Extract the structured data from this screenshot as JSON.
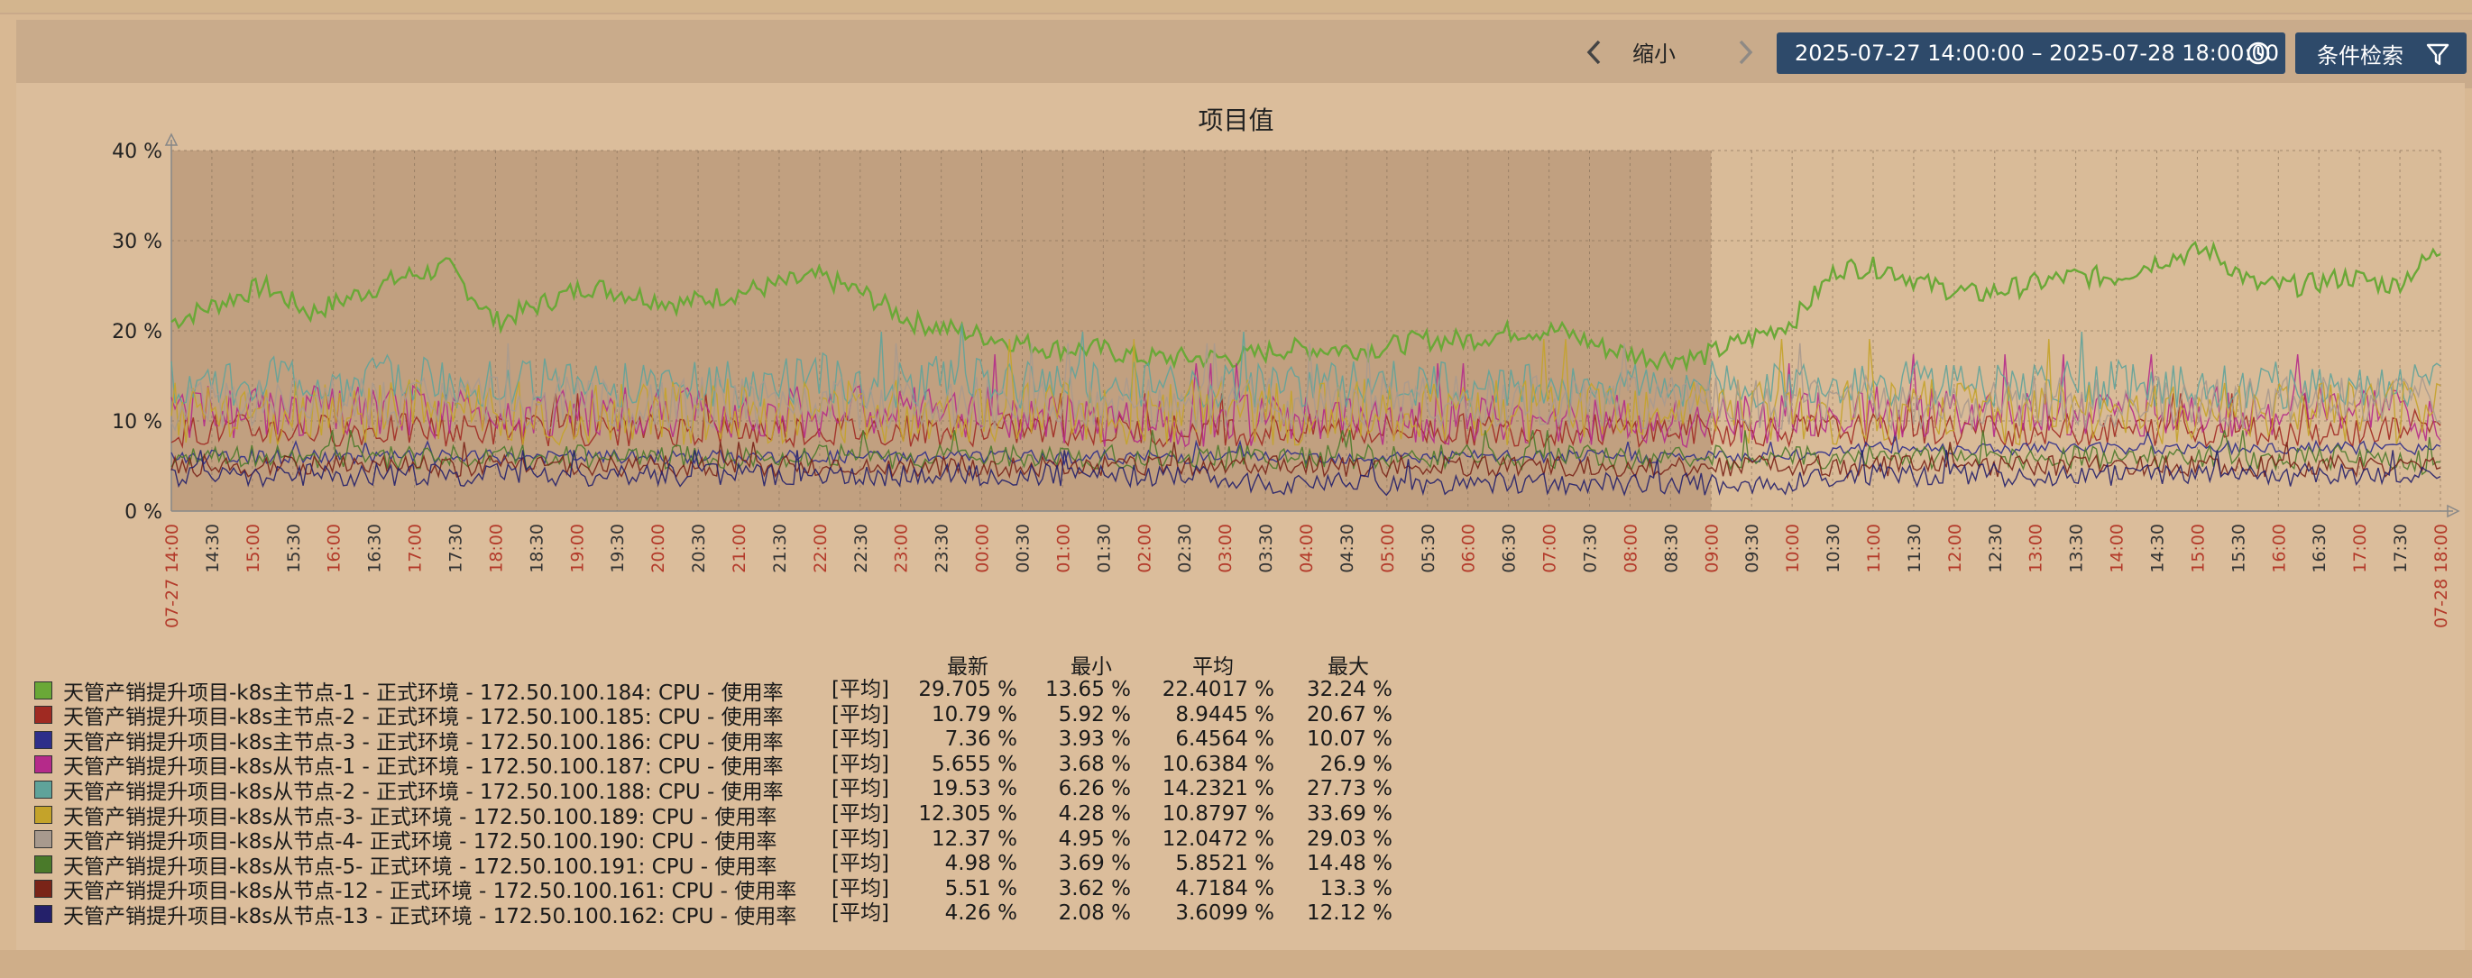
{
  "toolbar": {
    "zoom_out_label": "缩小",
    "time_range": "2025-07-27 14:00:00 – 2025-07-28 18:00:00",
    "filter_label": "条件检索"
  },
  "colors": {
    "accent_button": "#2e4a6a",
    "panel_bg": "#dbbd9b",
    "page_bg": "#d8b893",
    "shade": "#c1a080",
    "day_tick_red": "#b33a2a"
  },
  "chart_data": {
    "type": "line",
    "title": "项目值",
    "ylim": [
      0,
      40
    ],
    "y_ticks": [
      "0 %",
      "10 %",
      "20 %",
      "30 %",
      "40 %"
    ],
    "x_start": "07-27 14:00",
    "x_end": "07-28 18:00",
    "x_ticks": [
      "07-27 14:00",
      "14:30",
      "15:00",
      "15:30",
      "16:00",
      "16:30",
      "17:00",
      "17:30",
      "18:00",
      "18:30",
      "19:00",
      "19:30",
      "20:00",
      "20:30",
      "21:00",
      "21:30",
      "22:00",
      "22:30",
      "23:00",
      "23:30",
      "00:00",
      "00:30",
      "01:00",
      "01:30",
      "02:00",
      "02:30",
      "03:00",
      "03:30",
      "04:00",
      "04:30",
      "05:00",
      "05:30",
      "06:00",
      "06:30",
      "07:00",
      "07:30",
      "08:00",
      "08:30",
      "09:00",
      "09:30",
      "10:00",
      "10:30",
      "11:00",
      "11:30",
      "12:00",
      "12:30",
      "13:00",
      "13:30",
      "14:00",
      "14:30",
      "15:00",
      "15:30",
      "16:00",
      "16:30",
      "17:00",
      "17:30",
      "07-28 18:00"
    ],
    "red_tick_indices": [
      0,
      2,
      4,
      6,
      8,
      10,
      12,
      14,
      16,
      18,
      20,
      22,
      24,
      26,
      28,
      30,
      32,
      34,
      36,
      38,
      40,
      42,
      44,
      46,
      48,
      50,
      52,
      54,
      56
    ],
    "shaded_until": "07-28 09:00",
    "grid": true,
    "legend_position": "bottom",
    "legend_headers": [
      "最新",
      "最小",
      "平均",
      "最大"
    ],
    "series": [
      {
        "name": "天管产销提升项目-k8s主节点-1 - 正式环境 - 172.50.100.184: CPU - 使用率",
        "agg": "[平均]",
        "color": "#6aa837",
        "latest": "29.705 %",
        "min": "13.65 %",
        "avg": "22.4017 %",
        "max": "32.24 %",
        "trend": [
          21,
          23,
          25,
          22,
          24,
          26,
          27,
          21,
          23,
          25,
          24,
          23,
          24,
          25,
          26,
          24,
          21,
          20,
          19,
          18,
          18,
          17,
          17,
          17,
          18,
          18,
          18,
          19,
          19,
          20,
          20,
          18,
          17,
          17,
          19,
          21,
          27,
          27,
          25,
          24,
          25,
          26,
          26,
          28,
          29,
          25,
          25,
          26,
          25,
          29
        ]
      },
      {
        "name": "天管产销提升项目-k8s主节点-2 - 正式环境 - 172.50.100.185: CPU - 使用率",
        "agg": "[平均]",
        "color": "#a02a22",
        "latest": "10.79 %",
        "min": "5.92 %",
        "avg": "8.9445 %",
        "max": "20.67 %",
        "trend": [
          9,
          9,
          9,
          9,
          9,
          9,
          9,
          9,
          9,
          9,
          9,
          9,
          9,
          9,
          9,
          9,
          9,
          9,
          9,
          9,
          9,
          9,
          9,
          9,
          9,
          9,
          9,
          9,
          9,
          9,
          9,
          9,
          9,
          9,
          9,
          9,
          9,
          9,
          9,
          9,
          9,
          9,
          9,
          9,
          9,
          9,
          9,
          9,
          9,
          10
        ]
      },
      {
        "name": "天管产销提升项目-k8s主节点-3 - 正式环境 - 172.50.100.186: CPU - 使用率",
        "agg": "[平均]",
        "color": "#2e2e8a",
        "latest": "7.36 %",
        "min": "3.93 %",
        "avg": "6.4564 %",
        "max": "10.07 %",
        "trend": [
          6,
          6,
          6,
          6,
          6,
          6,
          6,
          6,
          6,
          6,
          6,
          6,
          6,
          6,
          6,
          6,
          6,
          6,
          6,
          6,
          6,
          6,
          6,
          6,
          6,
          6,
          6,
          6,
          6,
          6,
          6,
          6,
          6,
          6,
          6,
          6,
          7,
          7,
          7,
          7,
          7,
          7,
          7,
          7,
          7,
          7,
          7,
          7,
          7,
          7
        ]
      },
      {
        "name": "天管产销提升项目-k8s从节点-1 - 正式环境 - 172.50.100.187: CPU - 使用率",
        "agg": "[平均]",
        "color": "#b52a8a",
        "latest": "5.655 %",
        "min": "3.68 %",
        "avg": "10.6384 %",
        "max": "26.9 %",
        "trend": [
          11,
          11,
          11,
          11,
          11,
          11,
          11,
          11,
          11,
          11,
          11,
          11,
          11,
          11,
          11,
          11,
          11,
          11,
          11,
          10,
          10,
          10,
          10,
          10,
          10,
          10,
          10,
          10,
          10,
          10,
          10,
          10,
          10,
          10,
          10,
          10,
          11,
          11,
          11,
          11,
          11,
          11,
          11,
          11,
          11,
          11,
          11,
          11,
          11,
          10
        ]
      },
      {
        "name": "天管产销提升项目-k8s从节点-2 - 正式环境 - 172.50.100.188: CPU - 使用率",
        "agg": "[平均]",
        "color": "#5fa39a",
        "latest": "19.53 %",
        "min": "6.26 %",
        "avg": "14.2321 %",
        "max": "27.73 %",
        "trend": [
          14,
          14,
          15,
          14,
          14,
          15,
          14,
          14,
          15,
          14,
          14,
          15,
          14,
          14,
          15,
          14,
          14,
          15,
          14,
          14,
          14,
          14,
          14,
          14,
          14,
          14,
          14,
          14,
          14,
          14,
          14,
          14,
          14,
          14,
          14,
          14,
          14,
          14,
          14,
          14,
          14,
          14,
          14,
          14,
          14,
          14,
          14,
          14,
          14,
          14
        ]
      },
      {
        "name": "天管产销提升项目-k8s从节点-3- 正式环境 - 172.50.100.189: CPU - 使用率",
        "agg": "[平均]",
        "color": "#c4a32a",
        "latest": "12.305 %",
        "min": "4.28 %",
        "avg": "10.8797 %",
        "max": "33.69 %",
        "trend": [
          11,
          11,
          11,
          11,
          11,
          11,
          11,
          11,
          11,
          11,
          11,
          11,
          11,
          11,
          11,
          11,
          11,
          11,
          11,
          11,
          11,
          11,
          11,
          11,
          11,
          11,
          11,
          11,
          11,
          11,
          11,
          11,
          11,
          11,
          11,
          11,
          11,
          11,
          11,
          11,
          11,
          11,
          11,
          11,
          11,
          11,
          11,
          11,
          11,
          11
        ]
      },
      {
        "name": "天管产销提升项目-k8s从节点-4- 正式环境 - 172.50.100.190: CPU - 使用率",
        "agg": "[平均]",
        "color": "#a89a8e",
        "latest": "12.37 %",
        "min": "4.95 %",
        "avg": "12.0472 %",
        "max": "29.03 %",
        "trend": [
          12,
          12,
          12,
          12,
          12,
          12,
          12,
          12,
          12,
          12,
          12,
          12,
          12,
          12,
          12,
          12,
          12,
          12,
          12,
          12,
          12,
          12,
          12,
          12,
          12,
          12,
          12,
          12,
          12,
          12,
          12,
          12,
          12,
          12,
          12,
          12,
          12,
          12,
          12,
          12,
          12,
          12,
          12,
          12,
          12,
          12,
          12,
          12,
          12,
          12
        ]
      },
      {
        "name": "天管产销提升项目-k8s从节点-5- 正式环境 - 172.50.100.191: CPU - 使用率",
        "agg": "[平均]",
        "color": "#4a7a2a",
        "latest": "4.98 %",
        "min": "3.69 %",
        "avg": "5.8521 %",
        "max": "14.48 %",
        "trend": [
          6,
          6,
          6,
          6,
          6,
          6,
          6,
          6,
          6,
          6,
          6,
          6,
          6,
          6,
          6,
          6,
          6,
          6,
          6,
          6,
          6,
          6,
          6,
          6,
          6,
          6,
          6,
          6,
          6,
          6,
          6,
          6,
          6,
          6,
          6,
          6,
          6,
          6,
          6,
          6,
          6,
          6,
          6,
          6,
          6,
          6,
          6,
          6,
          6,
          5
        ]
      },
      {
        "name": "天管产销提升项目-k8s从节点-12 - 正式环境 - 172.50.100.161: CPU - 使用率",
        "agg": "[平均]",
        "color": "#7a2418",
        "latest": "5.51 %",
        "min": "3.62 %",
        "avg": "4.7184 %",
        "max": "13.3 %",
        "trend": [
          5,
          5,
          5,
          5,
          5,
          5,
          5,
          5,
          5,
          5,
          5,
          5,
          5,
          5,
          5,
          5,
          5,
          5,
          5,
          5,
          5,
          5,
          5,
          5,
          5,
          5,
          5,
          5,
          5,
          5,
          5,
          5,
          5,
          5,
          5,
          5,
          5,
          5,
          5,
          5,
          5,
          5,
          5,
          5,
          5,
          5,
          5,
          5,
          5,
          5
        ]
      },
      {
        "name": "天管产销提升项目-k8s从节点-13 - 正式环境 - 172.50.100.162: CPU - 使用率",
        "agg": "[平均]",
        "color": "#24206a",
        "latest": "4.26 %",
        "min": "2.08 %",
        "avg": "3.6099 %",
        "max": "12.12 %",
        "trend": [
          4,
          4,
          4,
          4,
          4,
          4,
          4,
          4,
          4,
          4,
          4,
          4,
          4,
          4,
          4,
          4,
          4,
          4,
          4,
          4,
          4,
          4,
          4,
          3,
          3,
          3,
          3,
          3,
          3,
          3,
          3,
          3,
          3,
          3,
          3,
          3,
          4,
          4,
          4,
          4,
          4,
          4,
          4,
          4,
          4,
          4,
          4,
          4,
          4,
          4
        ]
      }
    ]
  }
}
